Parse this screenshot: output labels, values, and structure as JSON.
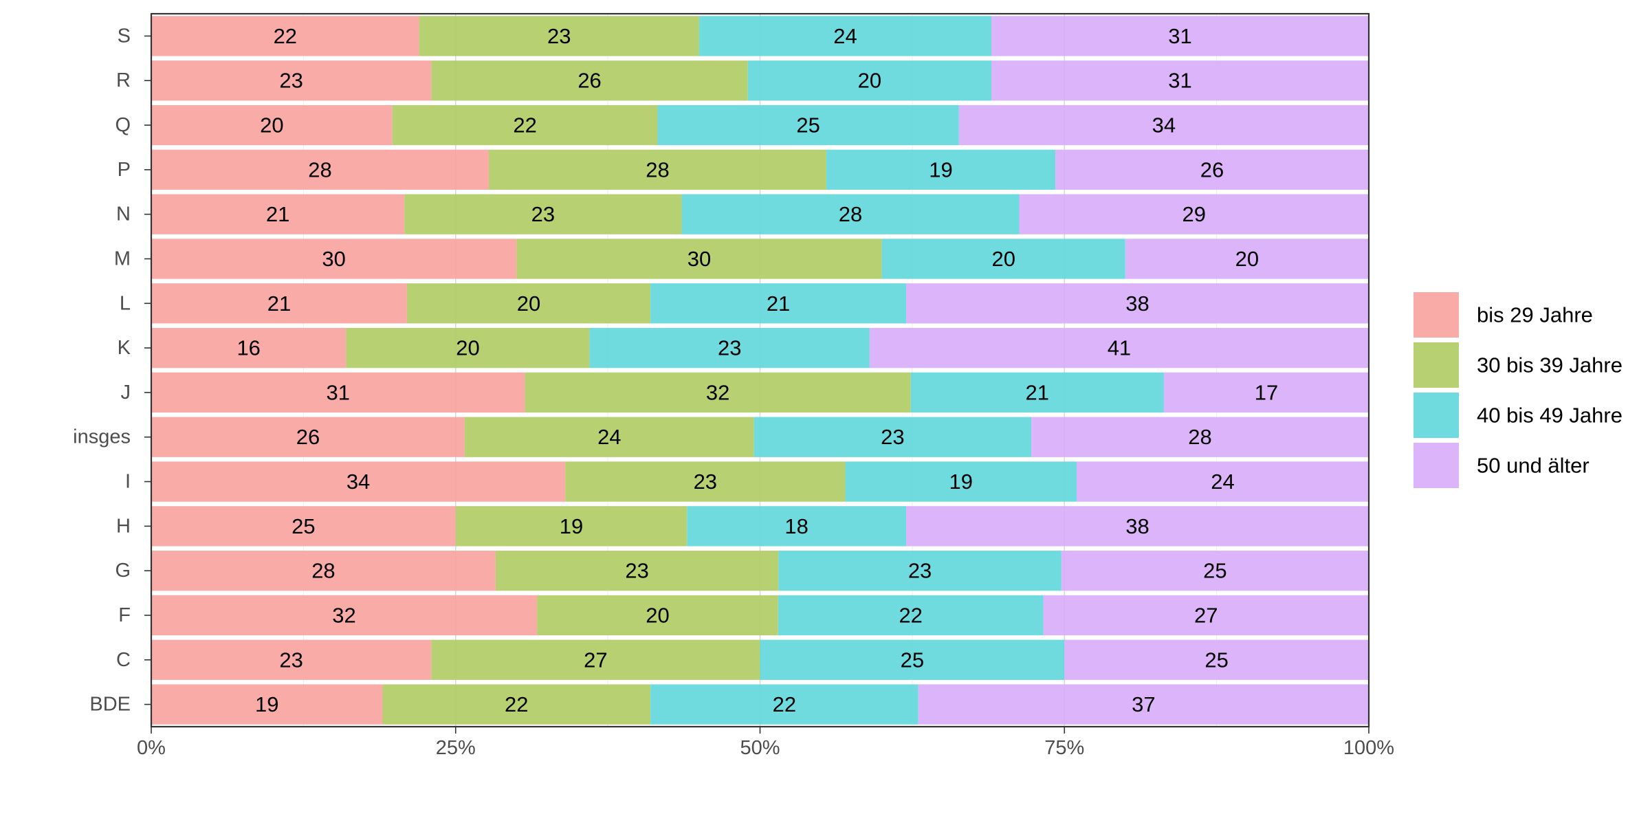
{
  "chart_data": {
    "type": "bar",
    "orientation": "horizontal",
    "stacked": "percent",
    "title": "",
    "xlabel": "",
    "ylabel": "",
    "xlim": [
      0,
      100
    ],
    "x_ticks": [
      "0%",
      "25%",
      "50%",
      "75%",
      "100%"
    ],
    "categories": [
      "S",
      "R",
      "Q",
      "P",
      "N",
      "M",
      "L",
      "K",
      "J",
      "insges",
      "I",
      "H",
      "G",
      "F",
      "C",
      "BDE"
    ],
    "series": [
      {
        "name": "bis 29 Jahre",
        "color": "#F8A5A0",
        "values": [
          22,
          23,
          20,
          28,
          21,
          30,
          21,
          16,
          31,
          26,
          34,
          25,
          28,
          32,
          23,
          19
        ]
      },
      {
        "name": "30 bis 39 Jahre",
        "color": "#B0CC66",
        "values": [
          23,
          26,
          22,
          28,
          23,
          30,
          20,
          20,
          32,
          24,
          23,
          19,
          23,
          20,
          27,
          22
        ]
      },
      {
        "name": "40 bis 49 Jahre",
        "color": "#63D8DC",
        "values": [
          24,
          20,
          25,
          19,
          28,
          20,
          21,
          23,
          21,
          23,
          19,
          18,
          23,
          22,
          25,
          22
        ]
      },
      {
        "name": "50 und älter",
        "color": "#D9AEF8",
        "values": [
          31,
          31,
          34,
          26,
          29,
          20,
          38,
          41,
          17,
          28,
          24,
          38,
          25,
          27,
          25,
          37
        ]
      }
    ],
    "grid": true,
    "legend_position": "right"
  }
}
